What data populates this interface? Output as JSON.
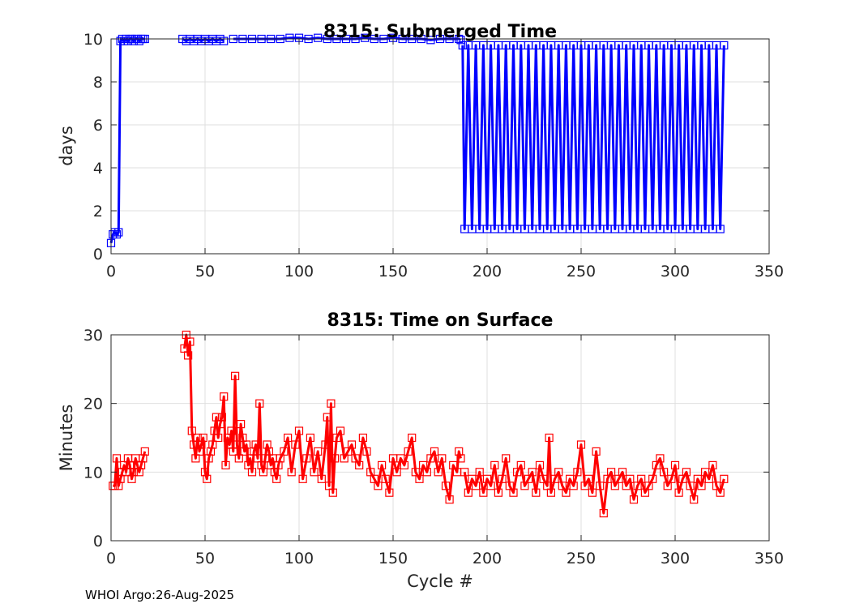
{
  "footer": "WHOI Argo:26-Aug-2025",
  "chart_data": [
    {
      "type": "line",
      "title": "8315: Submerged Time",
      "xlabel": "",
      "ylabel": "days",
      "xlim": [
        0,
        350
      ],
      "ylim": [
        0,
        10
      ],
      "xticks": [
        0,
        50,
        100,
        150,
        200,
        250,
        300,
        350
      ],
      "yticks": [
        0,
        2,
        4,
        6,
        8,
        10
      ],
      "grid": true,
      "marker": "square",
      "color": "#0000ff",
      "series": [
        {
          "segments": [
            {
              "x": [
                0,
                1,
                2,
                3,
                4,
                5,
                6,
                7,
                8,
                9,
                10,
                11,
                12,
                13,
                14,
                15,
                16,
                17,
                18
              ],
              "y": [
                0.5,
                0.9,
                1.0,
                0.9,
                1.0,
                9.9,
                10.0,
                9.9,
                10.0,
                9.9,
                10.0,
                10.0,
                9.9,
                10.0,
                10.0,
                9.9,
                10.0,
                10.0,
                10.0
              ]
            },
            {
              "x": [
                38,
                40,
                42,
                44,
                46,
                48,
                50,
                52,
                54,
                56,
                58,
                60
              ],
              "y": [
                10.0,
                9.9,
                10.0,
                9.9,
                10.0,
                9.9,
                10.0,
                9.9,
                10.0,
                9.9,
                10.0,
                9.9
              ]
            },
            {
              "x": [
                65,
                70,
                75,
                80,
                85,
                90,
                95,
                100,
                105,
                110,
                115,
                120,
                125,
                130,
                135,
                140,
                145,
                150,
                155,
                160,
                165,
                170,
                175,
                180,
                185,
                186
              ],
              "y": [
                10.0,
                10.0,
                10.0,
                10.0,
                10.0,
                10.0,
                10.05,
                10.05,
                10.0,
                10.05,
                10.0,
                10.0,
                10.0,
                10.0,
                10.05,
                10.0,
                10.0,
                10.05,
                10.0,
                10.0,
                10.0,
                9.95,
                10.0,
                10.0,
                10.0,
                9.95
              ]
            },
            {
              "x": [
                187,
                188,
                190,
                192,
                194,
                196,
                198,
                200,
                202,
                204,
                206,
                208,
                210,
                212,
                214,
                216,
                218,
                220,
                222,
                224,
                226,
                228,
                230,
                232,
                234,
                236,
                238,
                240,
                242,
                244,
                246,
                248,
                250,
                252,
                254,
                256,
                258,
                260,
                262,
                264,
                266,
                268,
                270,
                272,
                274,
                276,
                278,
                280,
                282,
                284,
                286,
                288,
                290,
                292,
                294,
                296,
                298,
                300,
                302,
                304,
                306,
                308,
                310,
                312,
                314,
                316,
                318,
                320,
                322,
                324,
                326
              ],
              "y": [
                9.7,
                1.15,
                9.7,
                1.15,
                9.7,
                1.15,
                9.7,
                1.15,
                9.7,
                1.15,
                9.7,
                1.15,
                9.7,
                1.15,
                9.7,
                1.15,
                9.7,
                1.15,
                9.7,
                1.15,
                9.7,
                1.15,
                9.7,
                1.15,
                9.7,
                1.15,
                9.7,
                1.15,
                9.7,
                1.15,
                9.7,
                1.15,
                9.7,
                1.15,
                9.7,
                1.15,
                9.7,
                1.15,
                9.7,
                1.15,
                9.7,
                1.15,
                9.7,
                1.15,
                9.7,
                1.15,
                9.7,
                1.15,
                9.7,
                1.15,
                9.7,
                1.15,
                9.7,
                1.15,
                9.7,
                1.15,
                9.7,
                1.15,
                9.7,
                1.15,
                9.7,
                1.15,
                9.7,
                1.15,
                9.7,
                1.15,
                9.7,
                1.15,
                9.7,
                1.15,
                9.7
              ]
            }
          ]
        }
      ]
    },
    {
      "type": "line",
      "title": "8315: Time on Surface",
      "xlabel": "Cycle #",
      "ylabel": "Minutes",
      "xlim": [
        0,
        350
      ],
      "ylim": [
        0,
        30
      ],
      "xticks": [
        0,
        50,
        100,
        150,
        200,
        250,
        300,
        350
      ],
      "yticks": [
        0,
        10,
        20,
        30
      ],
      "grid": true,
      "marker": "square",
      "color": "#ff0000",
      "series": [
        {
          "segments": [
            {
              "x": [
                1,
                2,
                3,
                4,
                5,
                6,
                7,
                8,
                9,
                10,
                11,
                12,
                13,
                14,
                15,
                16,
                17,
                18
              ],
              "y": [
                8,
                8,
                12,
                8,
                9,
                10,
                11,
                10,
                12,
                11,
                9,
                10,
                12,
                11,
                10,
                11,
                12,
                13
              ]
            },
            {
              "x": [
                39,
                40,
                41,
                42,
                43,
                44,
                45,
                46,
                47,
                48,
                49,
                50,
                51,
                52,
                53,
                54,
                55,
                56,
                57,
                58,
                59,
                60,
                61,
                62,
                63,
                64,
                65,
                66,
                67,
                68,
                69,
                70,
                71,
                72,
                73,
                74,
                75,
                76,
                77,
                78,
                79,
                80,
                81,
                82,
                83,
                84,
                85,
                86,
                87,
                88,
                89,
                90,
                92,
                94,
                96,
                98,
                100,
                102,
                104,
                106,
                108,
                110,
                112,
                114,
                115,
                116,
                117,
                118,
                119,
                120,
                122,
                124,
                126,
                128,
                130,
                132,
                134,
                136,
                138,
                140,
                142,
                144,
                146,
                148,
                150,
                152,
                154,
                156,
                158,
                160,
                162,
                164,
                166,
                168,
                170,
                172,
                174,
                176,
                178,
                180,
                182,
                184,
                185,
                186
              ],
              "y": [
                28,
                30,
                27,
                29,
                16,
                14,
                12,
                15,
                13,
                14,
                15,
                10,
                9,
                12,
                13,
                14,
                16,
                18,
                15,
                17,
                18,
                21,
                11,
                15,
                14,
                16,
                13,
                24,
                14,
                12,
                17,
                15,
                13,
                14,
                11,
                12,
                10,
                13,
                14,
                12,
                20,
                11,
                10,
                12,
                14,
                13,
                11,
                12,
                10,
                9,
                11,
                12,
                13,
                15,
                10,
                14,
                16,
                9,
                12,
                15,
                10,
                13,
                9,
                14,
                18,
                8,
                20,
                7,
                12,
                15,
                16,
                12,
                13,
                14,
                12,
                11,
                15,
                13,
                10,
                9,
                8,
                11,
                9,
                7,
                12,
                10,
                12,
                11,
                13,
                15,
                10,
                9,
                11,
                10,
                12,
                13,
                10,
                12,
                8,
                6,
                11,
                10,
                13,
                12
              ]
            },
            {
              "x": [
                188,
                190,
                192,
                194,
                196,
                198,
                200,
                202,
                204,
                206,
                208,
                210,
                212,
                214,
                216,
                218,
                220,
                222,
                224,
                226,
                228,
                230,
                232,
                233,
                234,
                236,
                238,
                240,
                242,
                244,
                246,
                248,
                250,
                252,
                254,
                256,
                258,
                260,
                262,
                264,
                266,
                268,
                270,
                272,
                274,
                276,
                278,
                280,
                282,
                284,
                286,
                288,
                290,
                292,
                294,
                296,
                298,
                300,
                302,
                304,
                306,
                308,
                310,
                312,
                314,
                316,
                318,
                320,
                322,
                324,
                326
              ],
              "y": [
                10,
                7,
                9,
                8,
                10,
                7,
                9,
                8,
                11,
                7,
                9,
                12,
                8,
                7,
                10,
                11,
                8,
                9,
                10,
                7,
                11,
                9,
                8,
                15,
                7,
                9,
                10,
                8,
                7,
                9,
                8,
                10,
                14,
                8,
                9,
                7,
                13,
                8,
                4,
                9,
                10,
                8,
                9,
                10,
                8,
                9,
                6,
                8,
                9,
                7,
                8,
                9,
                11,
                12,
                10,
                8,
                9,
                11,
                7,
                9,
                10,
                8,
                6,
                9,
                8,
                10,
                9,
                11,
                8,
                7,
                9
              ]
            }
          ]
        }
      ]
    }
  ]
}
